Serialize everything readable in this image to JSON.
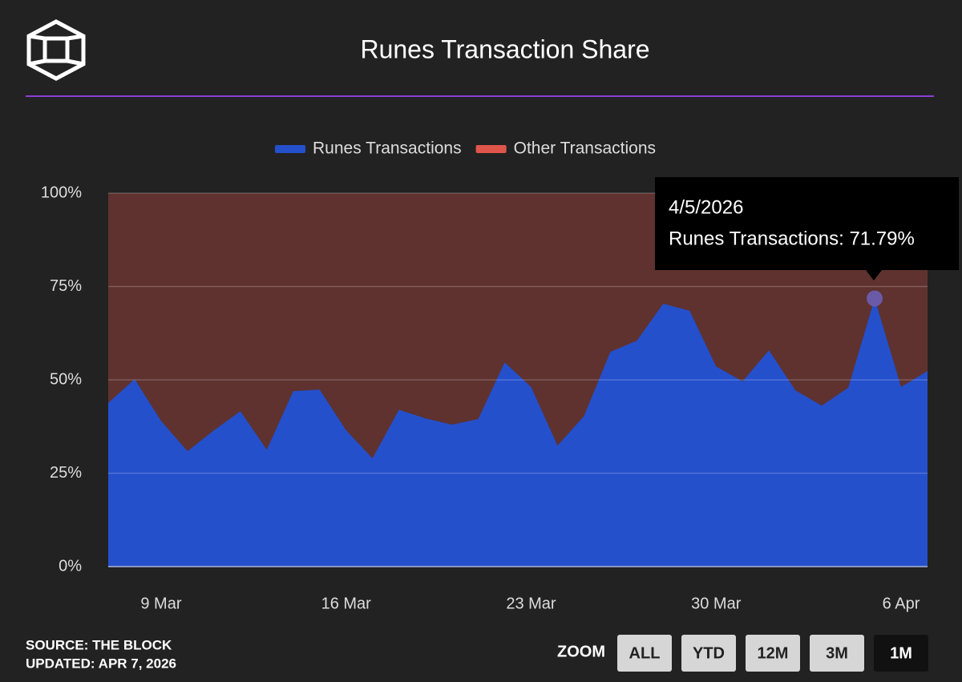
{
  "header": {
    "source": "SOURCE: THE BLOCK",
    "updated": "UPDATED: APR 7, 2026"
  },
  "zoom": {
    "label": "ZOOM",
    "buttons": [
      "ALL",
      "YTD",
      "12M",
      "3M",
      "1M"
    ],
    "active": "1M"
  },
  "tooltip": {
    "date": "4/5/2026",
    "text": "Runes Transactions: 71.79%"
  },
  "chart_data": {
    "type": "stacked-area",
    "title": "Runes Transaction Share",
    "x": [
      "2026-03-07",
      "2026-03-08",
      "2026-03-09",
      "2026-03-10",
      "2026-03-11",
      "2026-03-12",
      "2026-03-13",
      "2026-03-14",
      "2026-03-15",
      "2026-03-16",
      "2026-03-17",
      "2026-03-18",
      "2026-03-19",
      "2026-03-20",
      "2026-03-21",
      "2026-03-22",
      "2026-03-23",
      "2026-03-24",
      "2026-03-25",
      "2026-03-26",
      "2026-03-27",
      "2026-03-28",
      "2026-03-29",
      "2026-03-30",
      "2026-03-31",
      "2026-04-01",
      "2026-04-02",
      "2026-04-03",
      "2026-04-04",
      "2026-04-05",
      "2026-04-06",
      "2026-04-07"
    ],
    "series": [
      {
        "name": "Runes Transactions",
        "color": "#2550cc",
        "values": [
          43.8,
          50.2,
          39,
          30.9,
          36.5,
          41.6,
          31.3,
          47,
          47.4,
          36.5,
          29,
          42,
          39.7,
          38,
          39.5,
          54.7,
          48.1,
          32.4,
          40.3,
          57.5,
          60.5,
          70.4,
          68.5,
          53.6,
          49.6,
          57.9,
          47.2,
          43.1,
          47.9,
          71.79,
          48.1,
          52.4
        ]
      },
      {
        "name": "Other Transactions",
        "color": "#e0554a",
        "values": [
          56.2,
          49.8,
          61,
          69.1,
          63.5,
          58.4,
          68.7,
          53,
          52.6,
          63.5,
          71,
          58,
          60.3,
          62,
          60.5,
          45.3,
          51.9,
          67.6,
          59.7,
          42.5,
          39.5,
          29.6,
          31.5,
          46.4,
          50.4,
          42.1,
          52.8,
          56.9,
          52.1,
          28.21,
          51.9,
          47.6
        ]
      }
    ],
    "xlim": [
      "2026-03-07",
      "2026-04-07"
    ],
    "xticks": [
      {
        "value": "2026-03-09",
        "label": "9 Mar"
      },
      {
        "value": "2026-03-16",
        "label": "16 Mar"
      },
      {
        "value": "2026-03-23",
        "label": "23 Mar"
      },
      {
        "value": "2026-03-30",
        "label": "30 Mar"
      },
      {
        "value": "2026-04-06",
        "label": "6 Apr"
      }
    ],
    "ylim": [
      0,
      100
    ],
    "yticks": [
      {
        "value": 0,
        "label": "0%"
      },
      {
        "value": 25,
        "label": "25%"
      },
      {
        "value": 50,
        "label": "50%"
      },
      {
        "value": 75,
        "label": "75%"
      },
      {
        "value": 100,
        "label": "100%"
      }
    ],
    "grid": true
  }
}
